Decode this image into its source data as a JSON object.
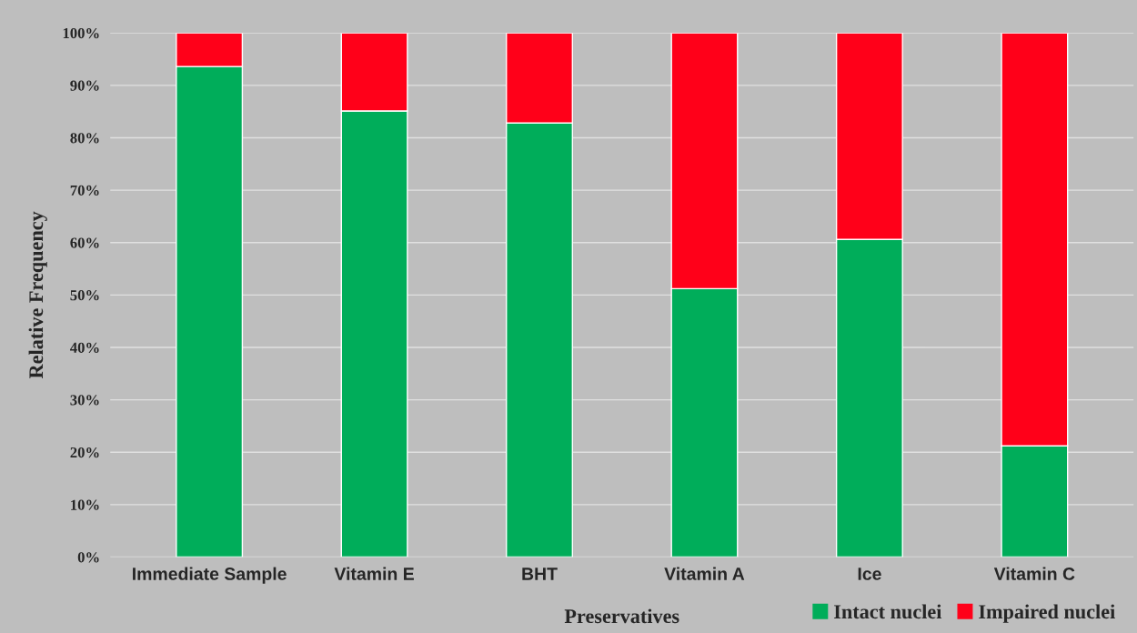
{
  "chart_data": {
    "type": "bar",
    "xlabel": "Preservatives",
    "ylabel": "Relative Frequency",
    "categories": [
      "Immediate Sample",
      "Vitamin E",
      "BHT",
      "Vitamin A",
      "Ice",
      "Vitamin C"
    ],
    "series": [
      {
        "name": "Intact nuclei",
        "color": "#00ad5a",
        "values": [
          93.6,
          85.1,
          82.8,
          51.2,
          60.6,
          21.2
        ]
      },
      {
        "name": "Impaired nuclei",
        "color": "#ff0019",
        "values": [
          6.4,
          14.9,
          17.2,
          48.8,
          39.4,
          78.8
        ]
      }
    ],
    "stacked": true,
    "ylim": [
      0,
      100
    ],
    "yticks": [
      {
        "value": 0,
        "label": "0%"
      },
      {
        "value": 10,
        "label": "10%"
      },
      {
        "value": 20,
        "label": "20%"
      },
      {
        "value": 30,
        "label": "30%"
      },
      {
        "value": 40,
        "label": "40%"
      },
      {
        "value": 50,
        "label": "50%"
      },
      {
        "value": 60,
        "label": "60%"
      },
      {
        "value": 70,
        "label": "70%"
      },
      {
        "value": 80,
        "label": "80%"
      },
      {
        "value": 90,
        "label": "90%"
      },
      {
        "value": 100,
        "label": "100%"
      }
    ],
    "grid": "y",
    "legend": "bottom right"
  }
}
